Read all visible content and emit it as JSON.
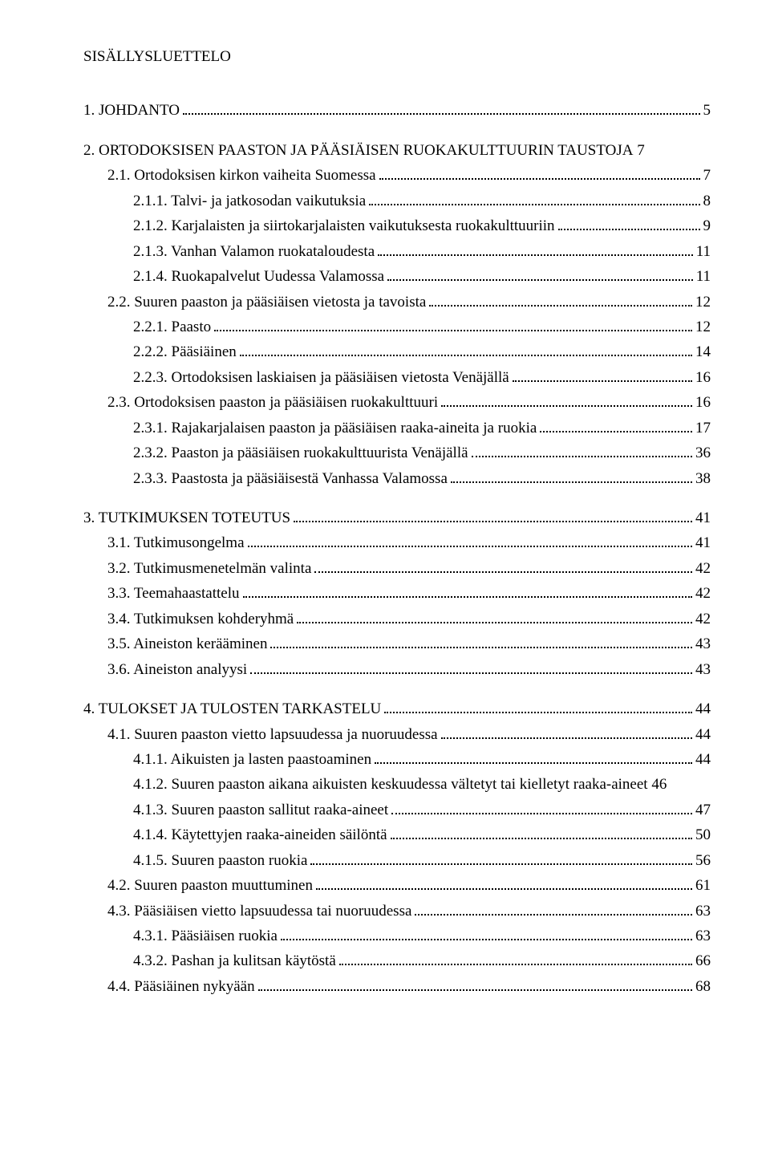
{
  "title": "SISÄLLYSLUETTELO",
  "entries": [
    {
      "level": 1,
      "label": "1.  JOHDANTO",
      "page": "5"
    },
    {
      "level": 1,
      "label": "2.  ORTODOKSISEN PAASTON JA PÄÄSIÄISEN RUOKAKULTTUURIN TAUSTOJA",
      "page": "7",
      "nodots": true
    },
    {
      "level": 2,
      "label": "2.1. Ortodoksisen kirkon vaiheita Suomessa",
      "page": "7"
    },
    {
      "level": 3,
      "label": "2.1.1.  Talvi- ja jatkosodan vaikutuksia",
      "page": "8"
    },
    {
      "level": 3,
      "label": "2.1.2.  Karjalaisten ja siirtokarjalaisten vaikutuksesta ruokakulttuuriin",
      "page": "9"
    },
    {
      "level": 3,
      "label": "2.1.3.  Vanhan Valamon ruokataloudesta",
      "page": "11"
    },
    {
      "level": 3,
      "label": "2.1.4.  Ruokapalvelut Uudessa Valamossa",
      "page": "11"
    },
    {
      "level": 2,
      "label": "2.2. Suuren paaston ja pääsiäisen vietosta ja tavoista",
      "page": "12"
    },
    {
      "level": 3,
      "label": "2.2.1.  Paasto",
      "page": "12"
    },
    {
      "level": 3,
      "label": "2.2.2.  Pääsiäinen",
      "page": "14"
    },
    {
      "level": 3,
      "label": "2.2.3.  Ortodoksisen laskiaisen ja pääsiäisen vietosta Venäjällä",
      "page": "16"
    },
    {
      "level": 2,
      "label": "2.3. Ortodoksisen paaston ja pääsiäisen ruokakulttuuri",
      "page": "16"
    },
    {
      "level": 3,
      "label": "2.3.1.  Rajakarjalaisen paaston ja pääsiäisen raaka-aineita ja ruokia",
      "page": "17"
    },
    {
      "level": 3,
      "label": "2.3.2.  Paaston ja pääsiäisen ruokakulttuurista Venäjällä",
      "page": "36"
    },
    {
      "level": 3,
      "label": "2.3.3.  Paastosta ja pääsiäisestä Vanhassa Valamossa",
      "page": "38"
    },
    {
      "level": 1,
      "label": "3.  TUTKIMUKSEN TOTEUTUS",
      "page": "41"
    },
    {
      "level": 2,
      "label": "3.1. Tutkimusongelma",
      "page": "41"
    },
    {
      "level": 2,
      "label": "3.2. Tutkimusmenetelmän valinta",
      "page": "42"
    },
    {
      "level": 2,
      "label": "3.3. Teemahaastattelu",
      "page": "42"
    },
    {
      "level": 2,
      "label": "3.4. Tutkimuksen kohderyhmä",
      "page": "42"
    },
    {
      "level": 2,
      "label": "3.5. Aineiston kerääminen",
      "page": "43"
    },
    {
      "level": 2,
      "label": "3.6. Aineiston analyysi",
      "page": "43"
    },
    {
      "level": 1,
      "label": "4.  TULOKSET JA TULOSTEN TARKASTELU",
      "page": "44"
    },
    {
      "level": 2,
      "label": "4.1. Suuren paaston vietto lapsuudessa ja nuoruudessa",
      "page": "44"
    },
    {
      "level": 3,
      "label": "4.1.1.  Aikuisten ja lasten paastoaminen",
      "page": "44"
    },
    {
      "level": 3,
      "label": "4.1.2.  Suuren paaston aikana aikuisten keskuudessa vältetyt tai kielletyt raaka-aineet",
      "page": "46",
      "nodots": true
    },
    {
      "level": 3,
      "label": "4.1.3.  Suuren paaston sallitut raaka-aineet",
      "page": "47"
    },
    {
      "level": 3,
      "label": "4.1.4.  Käytettyjen raaka-aineiden säilöntä",
      "page": "50"
    },
    {
      "level": 3,
      "label": "4.1.5.  Suuren paaston ruokia",
      "page": "56"
    },
    {
      "level": 2,
      "label": "4.2. Suuren paaston muuttuminen",
      "page": "61"
    },
    {
      "level": 2,
      "label": "4.3. Pääsiäisen vietto lapsuudessa tai nuoruudessa",
      "page": "63"
    },
    {
      "level": 3,
      "label": "4.3.1.  Pääsiäisen ruokia",
      "page": "63"
    },
    {
      "level": 3,
      "label": "4.3.2.  Pashan ja kulitsan käytöstä",
      "page": "66"
    },
    {
      "level": 2,
      "label": "4.4. Pääsiäinen nykyään",
      "page": "68"
    }
  ]
}
